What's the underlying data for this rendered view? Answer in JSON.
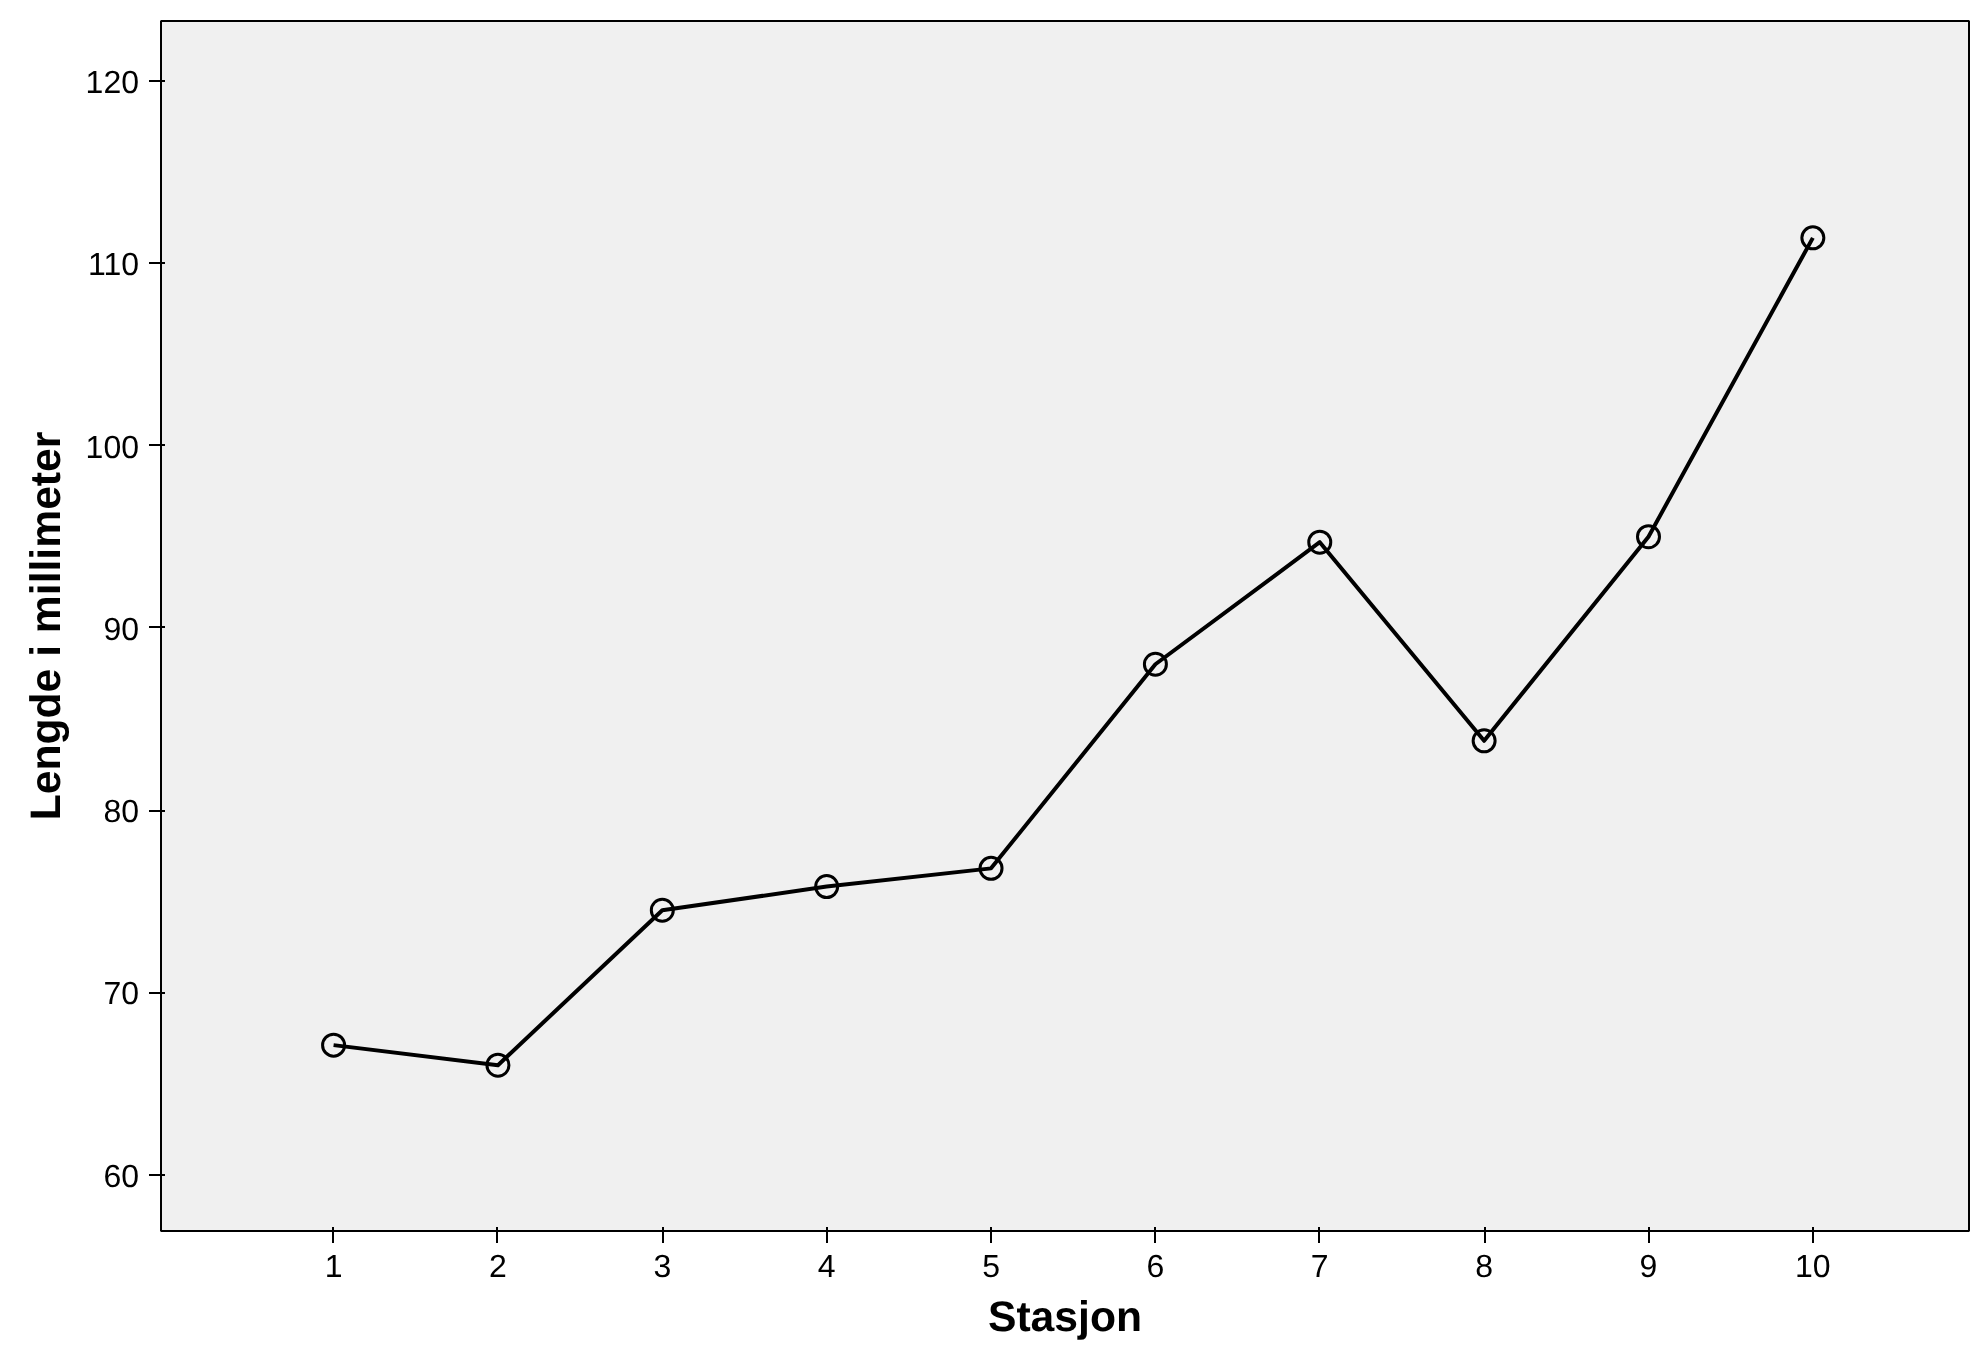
{
  "chart_data": {
    "type": "line",
    "xlabel": "Stasjon",
    "ylabel": "Lengde i millimeter",
    "x": [
      1,
      2,
      3,
      4,
      5,
      6,
      7,
      8,
      9,
      10
    ],
    "series": [
      {
        "color": "#000000",
        "values": [
          67.1,
          66.0,
          74.5,
          75.8,
          76.8,
          88.0,
          94.7,
          83.8,
          95.0,
          111.4
        ]
      }
    ],
    "xlim": [
      -0.05,
      10.95
    ],
    "xticks": [
      1,
      2,
      3,
      4,
      5,
      6,
      7,
      8,
      9,
      10
    ],
    "ylim": [
      56.9,
      123.3
    ],
    "yticks": [
      60,
      70,
      80,
      90,
      100,
      110,
      120
    ],
    "grid": false,
    "marker": "circle",
    "line_style": "solid"
  }
}
